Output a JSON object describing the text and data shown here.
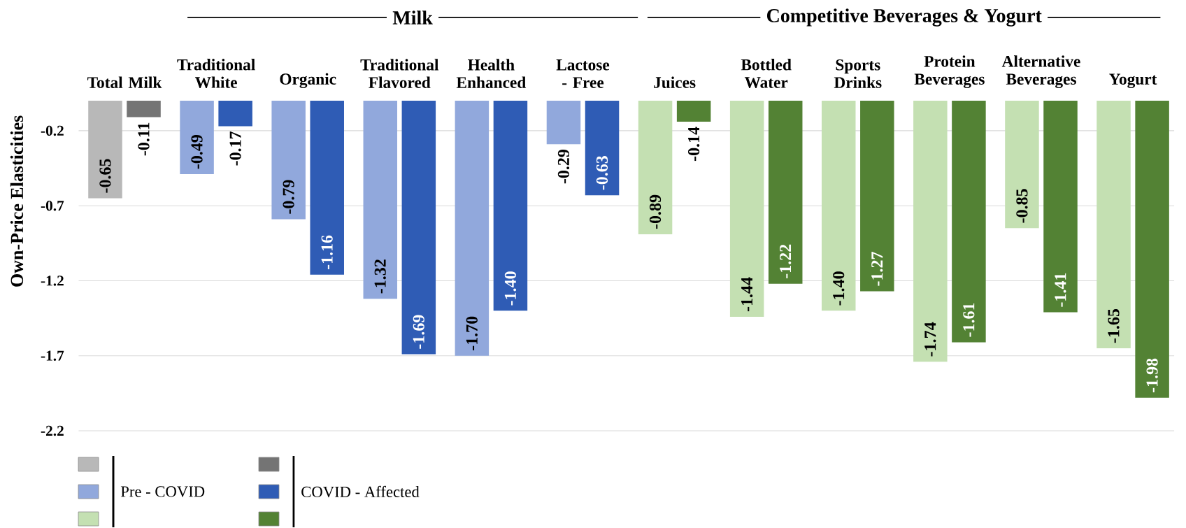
{
  "chart_data": {
    "type": "bar",
    "ylabel": "Own-Price Elasticities",
    "categories": [
      "Total Milk",
      "Traditional White",
      "Organic",
      "Traditional Flavored",
      "Health Enhanced",
      "Lactose - Free",
      "Juices",
      "Bottled Water",
      "Sports Drinks",
      "Protein Beverages",
      "Alternative Beverages",
      "Yogurt"
    ],
    "series": [
      {
        "name": "Pre - COVID",
        "colors": [
          "#b8b8b8",
          "#91a8dc",
          "#91a8dc",
          "#91a8dc",
          "#91a8dc",
          "#91a8dc",
          "#c4e0b2",
          "#c4e0b2",
          "#c4e0b2",
          "#c4e0b2",
          "#c4e0b2",
          "#c4e0b2"
        ],
        "values": [
          -0.65,
          -0.49,
          -0.79,
          -1.32,
          -1.7,
          -0.29,
          -0.89,
          -1.44,
          -1.4,
          -1.74,
          -0.85,
          -1.65
        ],
        "value_labels": [
          "-0.65",
          "-0.49",
          "-0.79",
          "-1.32",
          "-1.70",
          "-0.29",
          "-0.89",
          "-1.44",
          "-1.40",
          "-1.74",
          "-0.85",
          "-1.65"
        ]
      },
      {
        "name": "COVID - Affected",
        "colors": [
          "#747474",
          "#2f5cb5",
          "#2f5cb5",
          "#2f5cb5",
          "#2f5cb5",
          "#2f5cb5",
          "#538234",
          "#538234",
          "#538234",
          "#538234",
          "#538234",
          "#538234"
        ],
        "values": [
          -0.11,
          -0.17,
          -1.16,
          -1.69,
          -1.4,
          -0.63,
          -0.14,
          -1.22,
          -1.27,
          -1.61,
          -1.41,
          -1.98
        ],
        "value_labels": [
          "-0.11",
          "-0.17",
          "-1.16",
          "-1.69",
          "-1.40",
          "-0.63",
          "-0.14",
          "-1.22",
          "-1.27",
          "-1.61",
          "-1.41",
          "-1.98"
        ]
      }
    ],
    "ylim": [
      -2.2,
      0
    ],
    "yticks": [
      -0.2,
      -0.7,
      -1.2,
      -1.7,
      -2.2
    ],
    "grid": "y",
    "legend": "bottom left",
    "annotations": [
      "Milk",
      "Competitive Beverages & Yogurt"
    ]
  }
}
